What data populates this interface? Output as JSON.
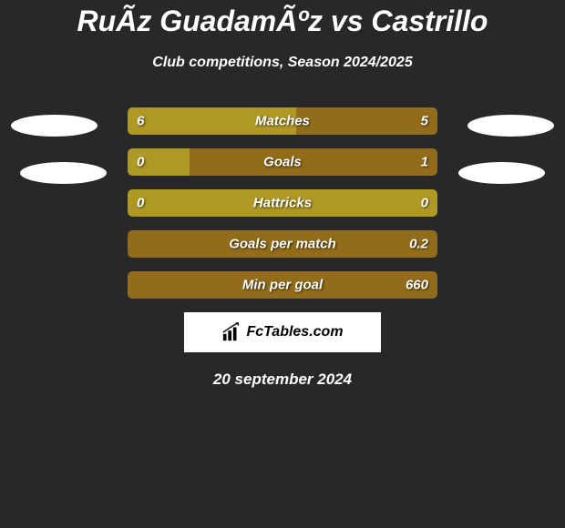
{
  "title": "RuÃ­z GuadamÃºz vs Castrillo",
  "subtitle": "Club competitions, Season 2024/2025",
  "date": "20 september 2024",
  "logo_text": "FcTables.com",
  "colors": {
    "background": "#282828",
    "left_bar": "#b09825",
    "right_bar": "#926c1a",
    "full_bar": "#b09825",
    "text": "#ffffff",
    "ellipse": "#ffffff",
    "logo_bg": "#ffffff"
  },
  "stats": [
    {
      "label": "Matches",
      "left_value": "6",
      "right_value": "5",
      "left_pct": 54.5,
      "right_pct": 45.5,
      "split": true
    },
    {
      "label": "Goals",
      "left_value": "0",
      "right_value": "1",
      "left_pct": 20,
      "right_pct": 80,
      "split": true
    },
    {
      "label": "Hattricks",
      "left_value": "0",
      "right_value": "0",
      "left_pct": 100,
      "right_pct": 0,
      "split": false
    },
    {
      "label": "Goals per match",
      "left_value": "",
      "right_value": "0.2",
      "left_pct": 0,
      "right_pct": 100,
      "split": false,
      "full_color": "#926c1a"
    },
    {
      "label": "Min per goal",
      "left_value": "",
      "right_value": "660",
      "left_pct": 0,
      "right_pct": 100,
      "split": false,
      "full_color": "#926c1a"
    }
  ]
}
